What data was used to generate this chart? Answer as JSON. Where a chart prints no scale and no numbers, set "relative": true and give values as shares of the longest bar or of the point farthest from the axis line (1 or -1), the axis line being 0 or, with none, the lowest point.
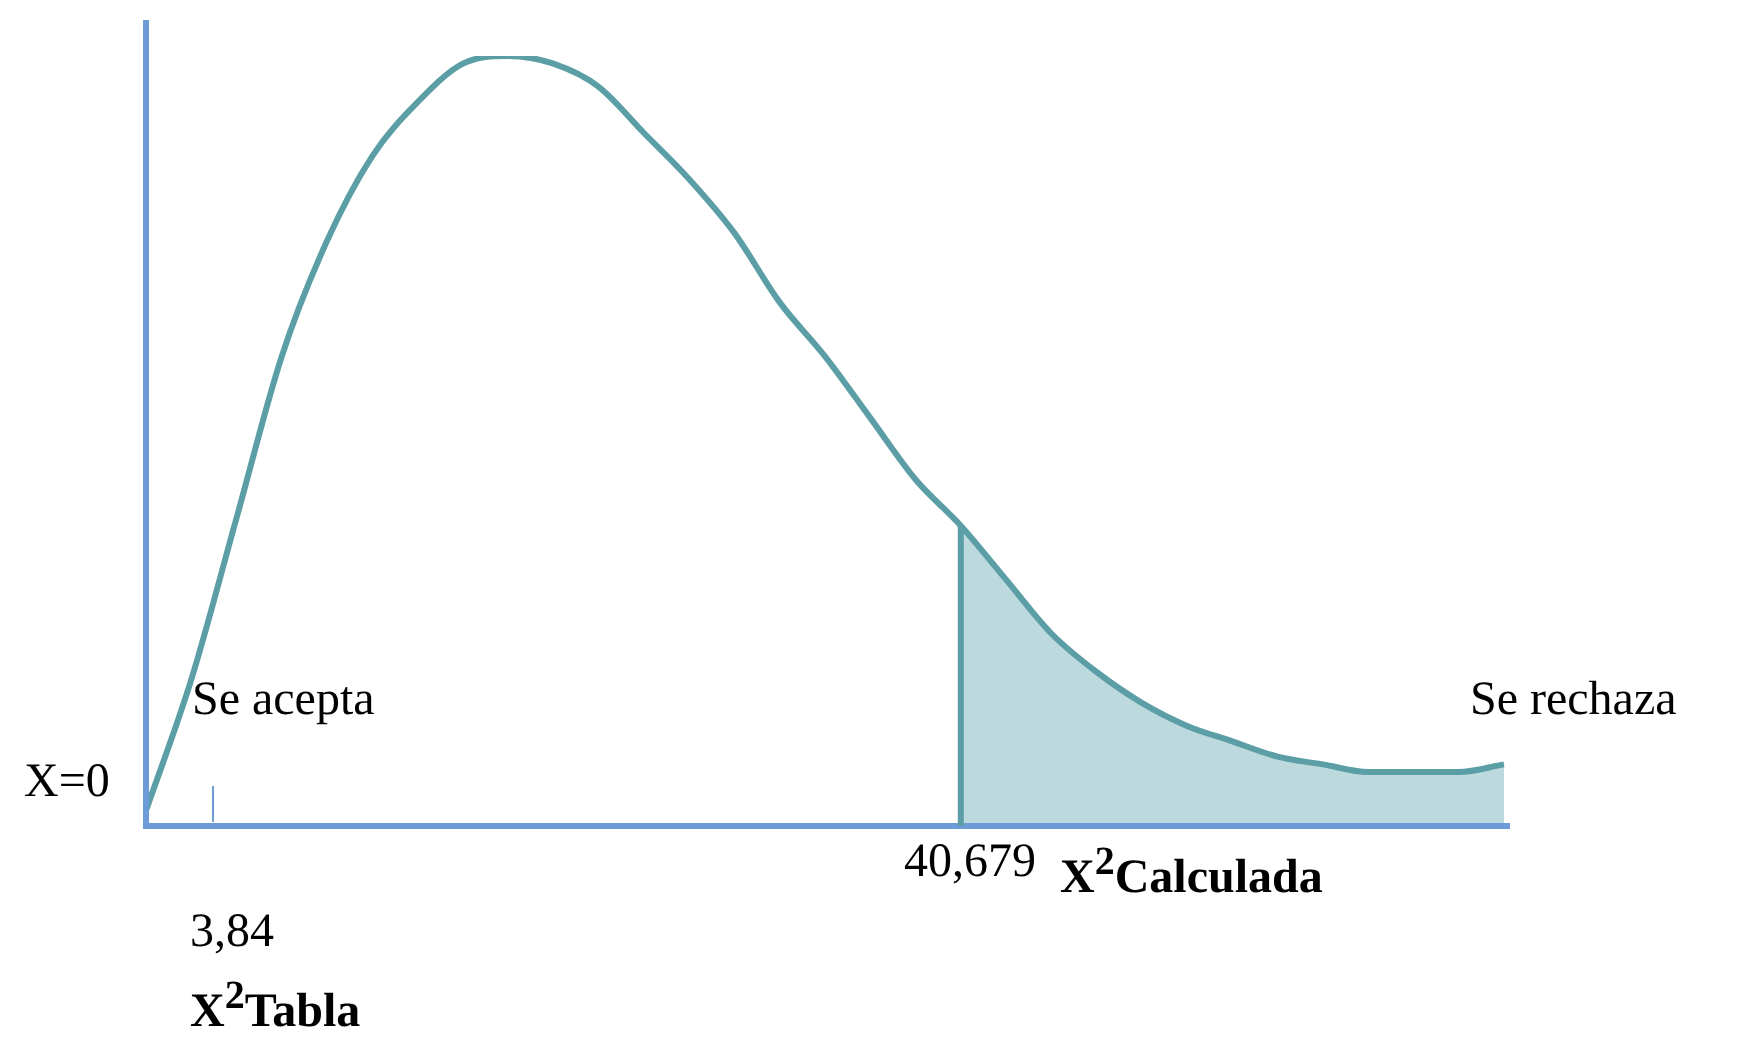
{
  "chart_data": {
    "type": "line",
    "relative": true,
    "categories": [
      null,
      null,
      null,
      null,
      null,
      null,
      null,
      null,
      null,
      null,
      null,
      null,
      null,
      null,
      null,
      null,
      null,
      null,
      null,
      null,
      null,
      null,
      null,
      null,
      null,
      null,
      null,
      null,
      null,
      null,
      null
    ],
    "series": [
      {
        "type": "area",
        "color": "#bcd9dd",
        "values": [
          null,
          null,
          null,
          null,
          null,
          null,
          null,
          null,
          null,
          null,
          null,
          null,
          null,
          null,
          null,
          null,
          null,
          null,
          0.39,
          0.32,
          0.25,
          0.2,
          0.16,
          0.13,
          0.11,
          0.09,
          0.08,
          0.07,
          0.07,
          0.07,
          0.08
        ]
      },
      {
        "color": "#5b9ea6",
        "values": [
          0.02,
          0.19,
          0.4,
          0.61,
          0.76,
          0.87,
          0.94,
          0.99,
          1,
          0.99,
          0.96,
          0.9,
          0.84,
          0.77,
          0.68,
          0.61,
          0.53,
          0.45,
          0.39,
          0.32,
          0.25,
          0.2,
          0.16,
          0.13,
          0.11,
          0.09,
          0.08,
          0.07,
          0.07,
          0.07,
          0.08
        ]
      }
    ],
    "annotations": [
      "Se acepta",
      "Se rechaza",
      "X=0",
      "3,84",
      "X$^{2}$Tabla",
      "40,679",
      "X$^{2}$Calculada"
    ]
  }
}
